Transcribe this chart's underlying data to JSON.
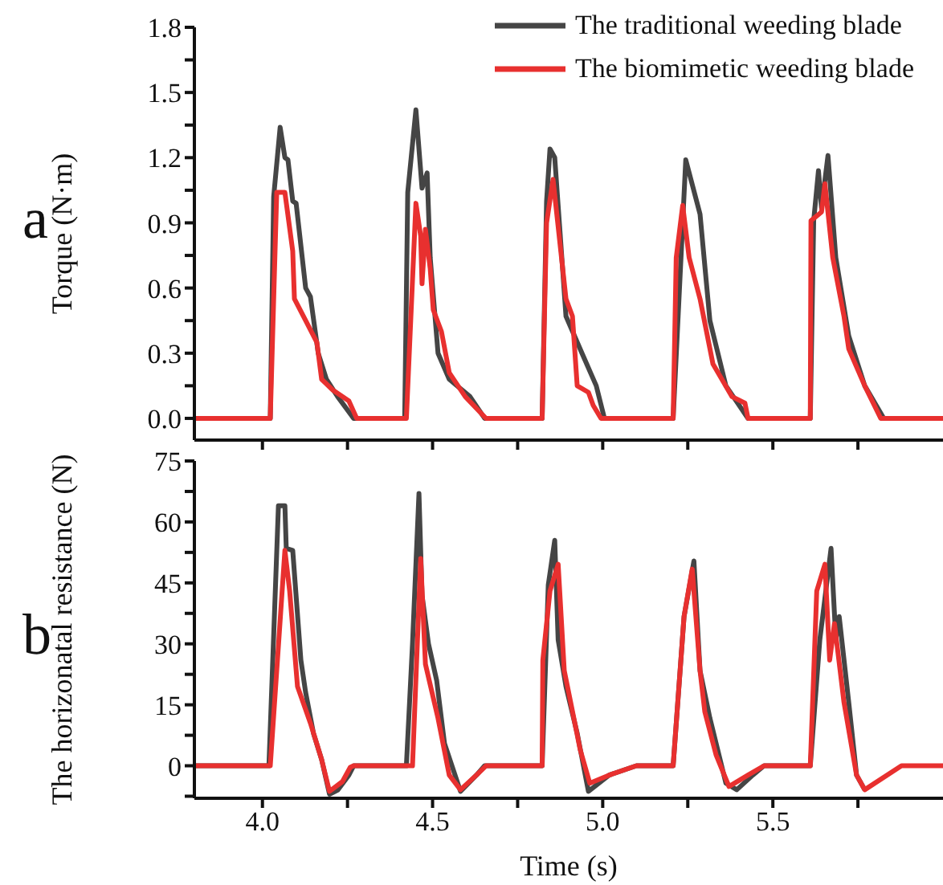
{
  "chart_data": [
    {
      "type": "line",
      "ylabel": "Torque (N·m)",
      "annotations": [
        "a"
      ],
      "legend": "top right",
      "marker": "none",
      "tick_labels": "y",
      "xlim": [
        3.8,
        6.0
      ],
      "xticks": [
        {
          "value": 4,
          "label": null
        },
        {
          "value": 4.25,
          "label": null
        },
        {
          "value": 4.5,
          "label": null
        },
        {
          "value": 4.75,
          "label": null
        },
        {
          "value": 5,
          "label": null
        },
        {
          "value": 5.25,
          "label": null
        },
        {
          "value": 5.5,
          "label": null
        },
        {
          "value": 5.75,
          "label": null
        }
      ],
      "ylim": [
        -0.1,
        1.8
      ],
      "yticks": [
        {
          "value": 0,
          "label": "0.0"
        },
        {
          "value": 0.15,
          "label": null
        },
        {
          "value": 0.3,
          "label": "0.3"
        },
        {
          "value": 0.45,
          "label": null
        },
        {
          "value": 0.6,
          "label": "0.6"
        },
        {
          "value": 0.75,
          "label": null
        },
        {
          "value": 0.9,
          "label": "0.9"
        },
        {
          "value": 1.05,
          "label": null
        },
        {
          "value": 1.2,
          "label": "1.2"
        },
        {
          "value": 1.35,
          "label": null
        },
        {
          "value": 1.5,
          "label": "1.5"
        },
        {
          "value": 1.65,
          "label": null
        },
        {
          "value": 1.8,
          "label": "1.8"
        }
      ],
      "series": [
        {
          "name": "The traditional weeding blade",
          "color": "#454545",
          "x": [
            3.8,
            4.023,
            4.033,
            4.052,
            4.066,
            4.075,
            4.089,
            4.099,
            4.127,
            4.141,
            4.164,
            4.188,
            4.221,
            4.268,
            4.418,
            4.427,
            4.451,
            4.469,
            4.484,
            4.493,
            4.516,
            4.549,
            4.61,
            4.653,
            4.822,
            4.835,
            4.845,
            4.859,
            4.892,
            4.939,
            4.981,
            5.005,
            5.207,
            5.244,
            5.286,
            5.315,
            5.362,
            5.427,
            5.61,
            5.62,
            5.634,
            5.643,
            5.662,
            5.685,
            5.723,
            5.77,
            5.826,
            6.0
          ],
          "values": [
            0,
            0,
            1.02,
            1.34,
            1.2,
            1.19,
            1.0,
            0.99,
            0.6,
            0.56,
            0.3,
            0.18,
            0.1,
            0,
            0,
            1.04,
            1.42,
            1.06,
            1.13,
            0.74,
            0.3,
            0.18,
            0.1,
            0,
            0,
            1.0,
            1.24,
            1.2,
            0.47,
            0.3,
            0.15,
            0,
            0,
            1.19,
            0.94,
            0.45,
            0.15,
            0,
            0,
            0.91,
            1.14,
            0.97,
            1.21,
            0.74,
            0.38,
            0.15,
            0,
            0
          ]
        },
        {
          "name": "The biomimetic weeding blade",
          "color": "#e8302f",
          "x": [
            3.8,
            4.023,
            4.042,
            4.066,
            4.089,
            4.094,
            4.127,
            4.16,
            4.174,
            4.207,
            4.254,
            4.277,
            4.423,
            4.451,
            4.465,
            4.469,
            4.479,
            4.493,
            4.502,
            4.526,
            4.549,
            4.596,
            4.657,
            4.822,
            4.835,
            4.854,
            4.892,
            4.911,
            4.925,
            4.958,
            4.972,
            4.995,
            5.207,
            5.216,
            5.235,
            5.254,
            5.286,
            5.324,
            5.38,
            5.418,
            5.427,
            5.61,
            5.612,
            5.643,
            5.653,
            5.676,
            5.709,
            5.723,
            5.77,
            5.817,
            6.0
          ],
          "values": [
            0,
            0,
            1.04,
            1.04,
            0.77,
            0.55,
            0.45,
            0.35,
            0.18,
            0.13,
            0.08,
            0,
            0,
            0.99,
            0.84,
            0.62,
            0.87,
            0.69,
            0.5,
            0.4,
            0.21,
            0.1,
            0,
            0,
            0.9,
            1.1,
            0.55,
            0.47,
            0.15,
            0.12,
            0.06,
            0,
            0,
            0.74,
            0.98,
            0.74,
            0.55,
            0.25,
            0.1,
            0.07,
            0,
            0,
            0.91,
            0.95,
            1.08,
            0.74,
            0.47,
            0.32,
            0.15,
            0,
            0
          ]
        }
      ]
    },
    {
      "type": "line",
      "xlabel": "Time (s)",
      "ylabel": "The horizonatal resistance (N)",
      "annotations": [
        "b"
      ],
      "marker": "none",
      "xlim": [
        3.8,
        6.0
      ],
      "xticks": [
        {
          "value": 4,
          "label": "4.0"
        },
        {
          "value": 4.25,
          "label": null
        },
        {
          "value": 4.5,
          "label": "4.5"
        },
        {
          "value": 4.75,
          "label": null
        },
        {
          "value": 5,
          "label": "5.0"
        },
        {
          "value": 5.25,
          "label": null
        },
        {
          "value": 5.5,
          "label": "5.5"
        },
        {
          "value": 5.75,
          "label": null
        }
      ],
      "ylim": [
        -8,
        75
      ],
      "yticks": [
        {
          "value": -7.5,
          "label": null
        },
        {
          "value": 0,
          "label": "0"
        },
        {
          "value": 7.5,
          "label": null
        },
        15,
        {
          "value": 22.5,
          "label": null
        },
        30,
        {
          "value": 37.5,
          "label": null
        },
        45,
        {
          "value": 52.5,
          "label": null
        },
        60,
        {
          "value": 67.5,
          "label": null
        },
        75
      ],
      "series": [
        {
          "color": "#454545",
          "x": [
            3.8,
            4.019,
            4.047,
            4.066,
            4.07,
            4.089,
            4.113,
            4.127,
            4.15,
            4.174,
            4.197,
            4.221,
            4.254,
            4.268,
            4.423,
            4.441,
            4.46,
            4.469,
            4.488,
            4.512,
            4.535,
            4.582,
            4.629,
            4.653,
            4.822,
            4.84,
            4.859,
            4.869,
            4.892,
            4.925,
            4.958,
            5.019,
            5.099,
            5.207,
            5.239,
            5.268,
            5.286,
            5.315,
            5.362,
            5.394,
            5.441,
            5.474,
            5.61,
            5.638,
            5.671,
            5.685,
            5.695,
            5.723,
            5.746,
            5.77
          ],
          "values": [
            0,
            0,
            64,
            64,
            53.5,
            53,
            26,
            18,
            8,
            1.5,
            -7,
            -6,
            -2.3,
            0,
            0,
            30,
            67,
            42,
            30,
            21,
            5.5,
            -6.3,
            -2.3,
            0,
            0,
            44.5,
            55.5,
            31,
            19.5,
            8,
            -6.3,
            -2.3,
            0,
            0,
            36.7,
            50.4,
            23.4,
            11.7,
            -4.3,
            -5.9,
            -2.3,
            0,
            0,
            31,
            53.5,
            31,
            36.7,
            15.6,
            -2.3,
            -5.9
          ]
        },
        {
          "color": "#e8302f",
          "x": [
            3.8,
            4.023,
            4.066,
            4.08,
            4.103,
            4.141,
            4.174,
            4.197,
            4.235,
            4.258,
            4.268,
            4.441,
            4.465,
            4.479,
            4.516,
            4.549,
            4.582,
            4.629,
            4.657,
            4.822,
            4.824,
            4.845,
            4.869,
            4.887,
            4.934,
            4.962,
            5.019,
            5.099,
            5.207,
            5.239,
            5.263,
            5.286,
            5.3,
            5.333,
            5.371,
            5.427,
            5.474,
            5.61,
            5.629,
            5.653,
            5.667,
            5.681,
            5.709,
            5.746,
            5.77,
            5.878,
            6.0
          ],
          "values": [
            0,
            0,
            53,
            43,
            19.5,
            10.5,
            1.5,
            -6.3,
            -3.9,
            -0.4,
            0,
            0,
            51,
            25,
            11.7,
            -2.3,
            -5.9,
            -2.3,
            0,
            0,
            26,
            43,
            49.6,
            23.4,
            3.9,
            -4.3,
            -2.3,
            0,
            0,
            36.7,
            48.4,
            23.4,
            13.3,
            2.7,
            -5.1,
            -2.3,
            0,
            0,
            43,
            49.6,
            26,
            35,
            15.6,
            -2.3,
            -5.9,
            0,
            0
          ]
        }
      ]
    }
  ]
}
